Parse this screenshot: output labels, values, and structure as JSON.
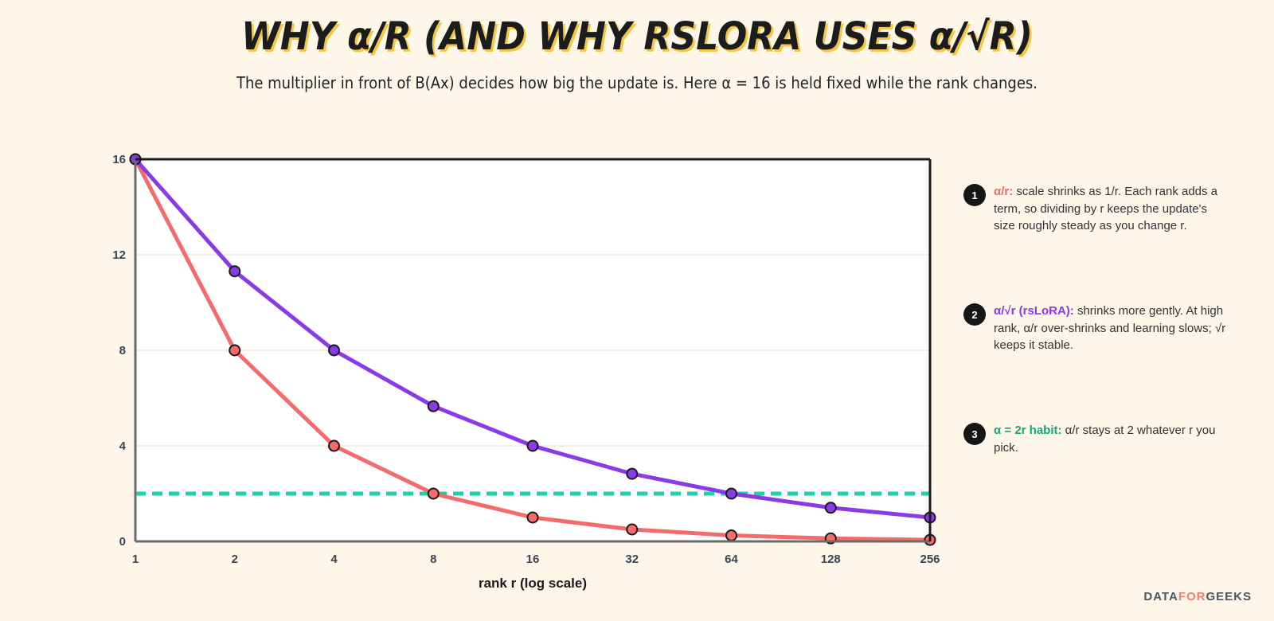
{
  "header": {
    "title": "WHY α/R (AND WHY RSLORA USES α/√R)",
    "subtitle": "The multiplier in front of B(Ax) decides how big the update is. Here α = 16 is held fixed while the rank changes."
  },
  "chart_data": {
    "type": "line",
    "x": [
      1,
      2,
      4,
      8,
      16,
      32,
      64,
      128,
      256
    ],
    "x_tick_labels": [
      "1",
      "2",
      "4",
      "8",
      "16",
      "32",
      "64",
      "128",
      "256"
    ],
    "xlabel": "rank r (log scale)",
    "x_scale": "log2",
    "ylim": [
      0,
      16
    ],
    "y_ticks": [
      0,
      4,
      8,
      12,
      16
    ],
    "y_tick_labels": [
      "0",
      "4",
      "8",
      "12",
      "16"
    ],
    "grid": "horizontal",
    "series": [
      {
        "id": "alpha-over-r",
        "color": "#f46b6b",
        "values": [
          16,
          8,
          4,
          2,
          1,
          0.5,
          0.25,
          0.125,
          0.0625
        ]
      },
      {
        "id": "alpha-over-sqrt-r",
        "color": "#8a3ae6",
        "values": [
          16,
          11.31,
          8,
          5.66,
          4,
          2.83,
          2,
          1.41,
          1
        ]
      }
    ],
    "reference_line": {
      "id": "alpha-2r",
      "value": 2,
      "color": "#1fd1a4",
      "style": "dashed"
    }
  },
  "annotations": [
    {
      "number": "1",
      "key": "α/r:",
      "key_color": "#f46b6b",
      "text": " scale shrinks as 1/r. Each rank adds a term, so dividing by r keeps the update's size roughly steady as you change r."
    },
    {
      "number": "2",
      "key": "α/√r (rsLoRA):",
      "key_color": "#8a3ae6",
      "text": " shrinks more gently. At high rank, α/r over-shrinks and learning slows; √r keeps it stable."
    },
    {
      "number": "3",
      "key": "α = 2r habit:",
      "key_color": "#14a777",
      "text": " α/r stays at 2 whatever r you pick."
    }
  ],
  "brand": {
    "part1": "DATA",
    "part2": "FOR",
    "part3": "GEEKS"
  }
}
